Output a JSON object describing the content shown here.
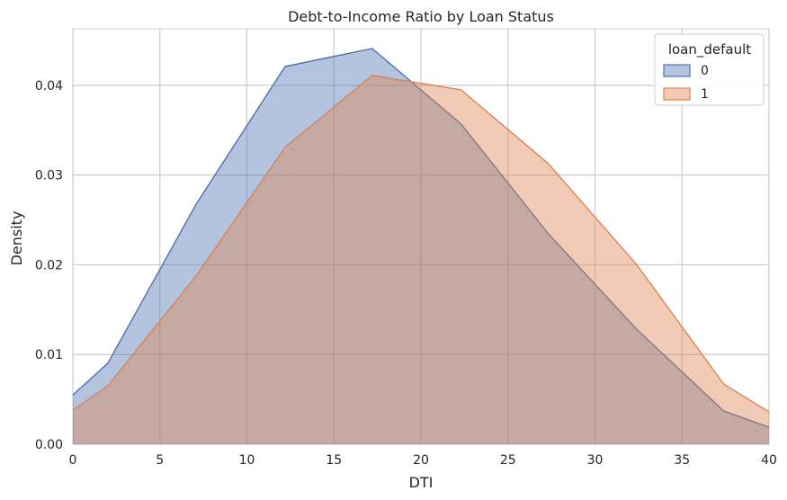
{
  "chart_data": {
    "type": "area",
    "title": "Debt-to-Income Ratio by Loan Status",
    "xlabel": "DTI",
    "ylabel": "Density",
    "xlim": [
      0,
      40
    ],
    "ylim": [
      0,
      0.0463
    ],
    "xticks": [
      0,
      5,
      10,
      15,
      20,
      25,
      30,
      35,
      40
    ],
    "yticks": [
      0.0,
      0.01,
      0.02,
      0.03,
      0.04
    ],
    "ytick_labels": [
      "0.00",
      "0.01",
      "0.02",
      "0.03",
      "0.04"
    ],
    "grid": true,
    "legend": {
      "title": "loan_default",
      "placement": "top-right"
    },
    "series": [
      {
        "name": "0",
        "color": "#4c72b0",
        "x": [
          0,
          2.0,
          7.1,
          12.2,
          17.2,
          22.3,
          27.3,
          32.4,
          37.4,
          40
        ],
        "y": [
          0.0055,
          0.009,
          0.0268,
          0.0421,
          0.0441,
          0.0357,
          0.0235,
          0.0128,
          0.0037,
          0.0019
        ]
      },
      {
        "name": "1",
        "color": "#dd8452",
        "x": [
          0,
          2.0,
          7.1,
          12.2,
          17.2,
          22.3,
          27.3,
          32.4,
          37.4,
          40
        ],
        "y": [
          0.0038,
          0.0065,
          0.0188,
          0.0331,
          0.0411,
          0.0395,
          0.0313,
          0.02,
          0.0067,
          0.0036
        ]
      }
    ]
  }
}
